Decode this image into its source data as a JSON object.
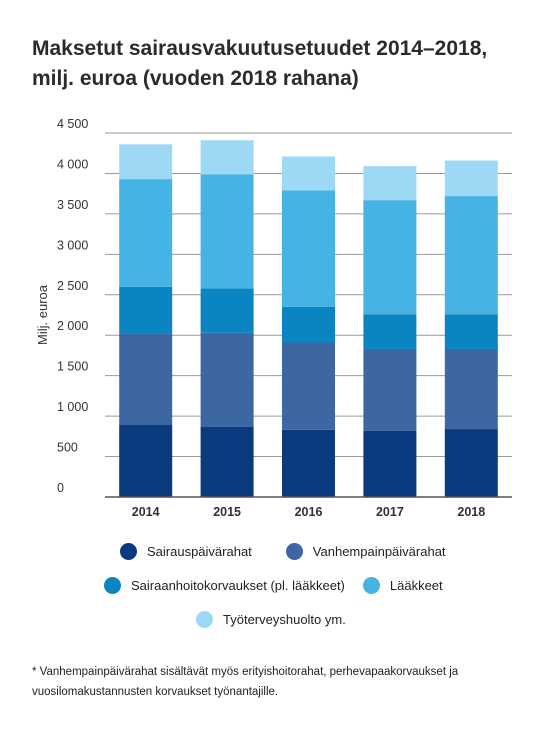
{
  "title_lines": [
    "Maksetut sairausvakuutusetuudet 2014–2018,",
    "milj. euroa (vuoden 2018 rahana)"
  ],
  "chart_data": {
    "type": "bar",
    "stacked": true,
    "categories": [
      "2014",
      "2015",
      "2016",
      "2017",
      "2018"
    ],
    "ylabel": "Milj. euroa",
    "ylim": [
      0,
      4500
    ],
    "yticks": [
      0,
      500,
      1000,
      1500,
      2000,
      2500,
      3000,
      3500,
      4000,
      4500
    ],
    "ytick_labels": [
      "0",
      "500",
      "1 000",
      "1 500",
      "2 000",
      "2 500",
      "3 000",
      "3 500",
      "4 000",
      "4 500"
    ],
    "grid": true,
    "series": [
      {
        "name": "Sairauspäivärahat",
        "color": "#0b3a7e",
        "values": [
          890,
          870,
          830,
          820,
          840
        ]
      },
      {
        "name": "Vanhempainpäivärahat",
        "color": "#3c67a3",
        "values": [
          1130,
          1160,
          1080,
          1010,
          990
        ]
      },
      {
        "name": "Sairaanhoitokorvaukset (pl. lääkkeet)",
        "color": "#0a85c2",
        "values": [
          580,
          550,
          440,
          430,
          430
        ]
      },
      {
        "name": "Lääkkeet",
        "color": "#45b4e5",
        "values": [
          1330,
          1410,
          1440,
          1410,
          1460
        ]
      },
      {
        "name": "Työterveyshuolto ym.",
        "color": "#9dd9f5",
        "values": [
          430,
          420,
          420,
          420,
          440
        ]
      }
    ]
  },
  "legend": [
    [
      {
        "label": "Sairauspäivärahat",
        "color": "#0b3a7e"
      },
      {
        "label": "Vanhempainpäivärahat",
        "color": "#3c67a3"
      }
    ],
    [
      {
        "label": "Sairaanhoitokorvaukset (pl. lääkkeet)",
        "color": "#0a85c2"
      },
      {
        "label": "Lääkkeet",
        "color": "#45b4e5"
      }
    ],
    [
      {
        "label": "Työterveyshuolto ym.",
        "color": "#9dd9f5"
      }
    ]
  ],
  "footnote": "* Vanhempainpäivärahat sisältävät myös erityishoitorahat, perhevapaakorvaukset ja vuosilomakustannusten korvaukset työnantajille."
}
